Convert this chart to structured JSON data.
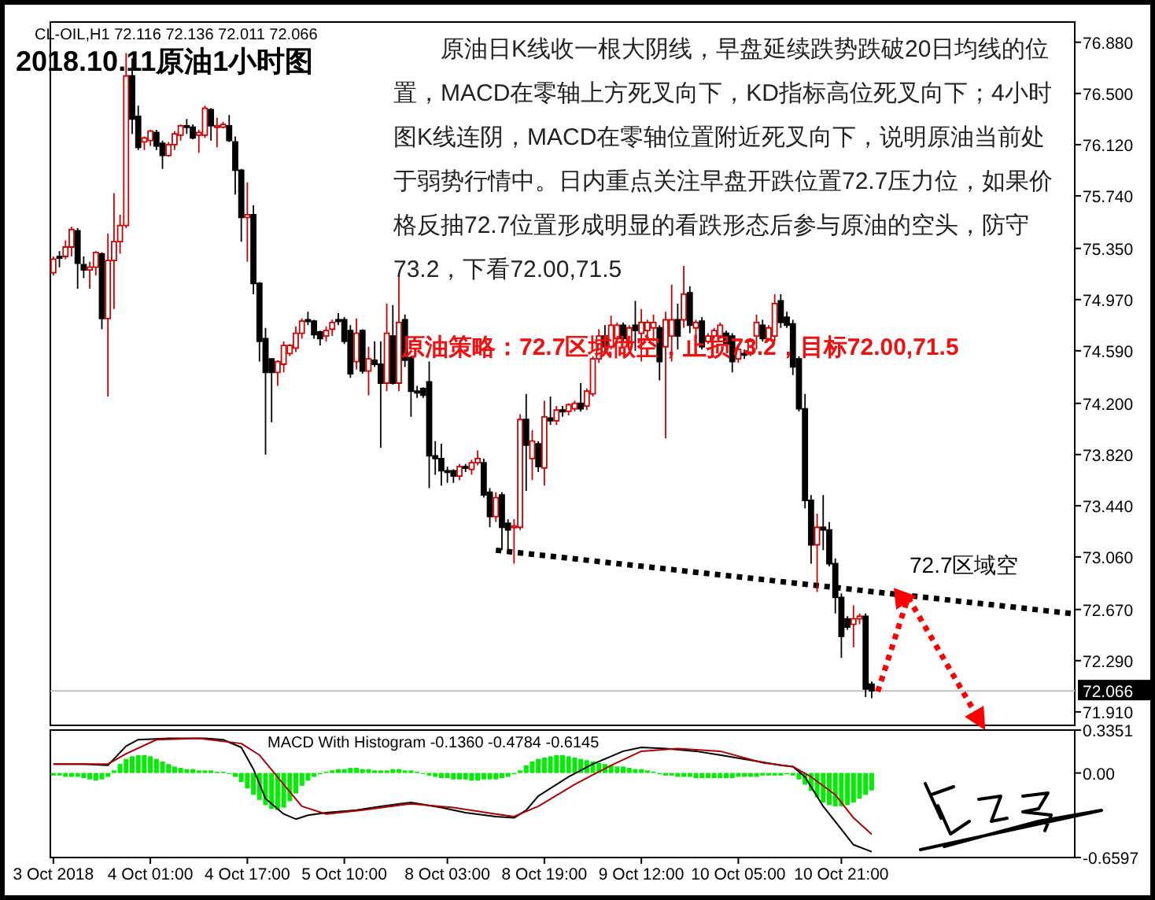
{
  "chart_data": [
    {
      "type": "candlestick",
      "title": "2018.10.11原油1小时图",
      "subtitle": "CL-OIL,H1  72.116 72.136 72.011 72.066",
      "annotations": [
        "原油日K线收一根大阴线，早盘延续跌势跌破20日均线的位置，MACD在零轴上方死叉向下，KD指标高位死叉向下；4小时图K线连阴，MACD在零轴位置附近死叉向下，说明原油当前处于弱势行情中。日内重点关注早盘开跌位置72.7压力位，如果价格反抽72.7位置形成明显的看跌形态后参与原油的空头，防守73.2，下看72.00,71.5",
        {
          "text": "原油策略：72.7区域做空，止损73.2，目标72.00,71.5",
          "y": 74.62
        },
        "72.7区域空"
      ],
      "tick_labels": "y",
      "ohlc": [
        [
          75.17,
          75.29,
          75.15,
          75.27
        ],
        [
          75.29,
          75.33,
          75.21,
          75.28
        ],
        [
          75.29,
          75.41,
          75.27,
          75.36
        ],
        [
          75.36,
          75.51,
          75.29,
          75.49
        ],
        [
          75.48,
          75.5,
          75.05,
          75.24
        ],
        [
          75.23,
          75.29,
          75.13,
          75.19
        ],
        [
          75.19,
          75.25,
          75.05,
          75.21
        ],
        [
          75.21,
          75.33,
          75.15,
          75.32
        ],
        [
          75.31,
          75.32,
          74.75,
          74.83
        ],
        [
          74.83,
          75.46,
          74.25,
          75.26
        ],
        [
          75.26,
          75.76,
          74.9,
          75.4
        ],
        [
          75.4,
          75.6,
          75.31,
          75.52
        ],
        [
          75.52,
          76.8,
          75.5,
          76.63
        ],
        [
          76.63,
          76.76,
          76.2,
          76.31
        ],
        [
          76.33,
          76.41,
          76.08,
          76.1
        ],
        [
          76.14,
          76.18,
          76.08,
          76.17
        ],
        [
          76.15,
          76.23,
          76.11,
          76.22
        ],
        [
          76.21,
          76.23,
          76.08,
          76.11
        ],
        [
          76.13,
          76.15,
          75.94,
          76.04
        ],
        [
          76.04,
          76.14,
          76.03,
          76.12
        ],
        [
          76.12,
          76.22,
          76.08,
          76.2
        ],
        [
          76.19,
          76.27,
          76.15,
          76.26
        ],
        [
          76.26,
          76.31,
          76.2,
          76.25
        ],
        [
          76.25,
          76.27,
          76.16,
          76.17
        ],
        [
          76.19,
          76.23,
          76.06,
          76.21
        ],
        [
          76.19,
          76.41,
          76.17,
          76.39
        ],
        [
          76.38,
          76.39,
          76.15,
          76.26
        ],
        [
          76.25,
          76.32,
          76.1,
          76.26
        ],
        [
          76.25,
          76.29,
          76.24,
          76.27
        ],
        [
          76.26,
          76.34,
          76.14,
          76.15
        ],
        [
          76.14,
          76.18,
          75.75,
          75.93
        ],
        [
          75.93,
          75.94,
          75.4,
          75.58
        ],
        [
          75.58,
          75.84,
          75.25,
          75.6
        ],
        [
          75.6,
          75.67,
          75.01,
          75.09
        ],
        [
          75.09,
          75.1,
          74.51,
          74.66
        ],
        [
          74.68,
          74.76,
          73.82,
          74.43
        ],
        [
          74.53,
          74.53,
          74.06,
          74.43
        ],
        [
          74.43,
          74.52,
          74.33,
          74.51
        ],
        [
          74.49,
          74.66,
          74.43,
          74.63
        ],
        [
          74.57,
          74.64,
          74.55,
          74.63
        ],
        [
          74.61,
          74.77,
          74.58,
          74.72
        ],
        [
          74.72,
          74.83,
          74.68,
          74.81
        ],
        [
          74.82,
          74.88,
          74.78,
          74.81
        ],
        [
          74.81,
          74.82,
          74.68,
          74.71
        ],
        [
          74.73,
          74.74,
          74.63,
          74.68
        ],
        [
          74.7,
          74.77,
          74.66,
          74.74
        ],
        [
          74.75,
          74.82,
          74.7,
          74.8
        ],
        [
          74.82,
          74.87,
          74.78,
          74.81
        ],
        [
          74.82,
          74.84,
          74.64,
          74.66
        ],
        [
          74.74,
          74.78,
          74.39,
          74.42
        ],
        [
          74.51,
          74.83,
          74.45,
          74.72
        ],
        [
          74.74,
          74.75,
          74.42,
          74.44
        ],
        [
          74.44,
          74.62,
          74.26,
          74.53
        ],
        [
          74.52,
          74.66,
          74.47,
          74.49
        ],
        [
          74.49,
          74.66,
          73.87,
          74.35
        ],
        [
          74.35,
          74.94,
          74.29,
          74.72
        ],
        [
          74.7,
          74.93,
          74.34,
          74.35
        ],
        [
          74.35,
          75.15,
          74.29,
          74.8
        ],
        [
          74.82,
          74.86,
          74.47,
          74.52
        ],
        [
          74.54,
          74.55,
          74.1,
          74.29
        ],
        [
          74.29,
          74.33,
          74.24,
          74.28
        ],
        [
          74.31,
          74.32,
          74.24,
          74.26
        ],
        [
          74.36,
          74.51,
          73.57,
          73.81
        ],
        [
          73.81,
          73.92,
          73.67,
          73.79
        ],
        [
          73.79,
          73.9,
          73.59,
          73.7
        ],
        [
          73.7,
          73.73,
          73.61,
          73.69
        ],
        [
          73.7,
          73.71,
          73.61,
          73.66
        ],
        [
          73.66,
          73.75,
          73.63,
          73.73
        ],
        [
          73.73,
          73.75,
          73.69,
          73.72
        ],
        [
          73.71,
          73.78,
          73.67,
          73.76
        ],
        [
          73.76,
          73.85,
          73.74,
          73.79
        ],
        [
          73.76,
          73.79,
          73.5,
          73.52
        ],
        [
          73.54,
          73.57,
          73.28,
          73.36
        ],
        [
          73.36,
          73.54,
          73.32,
          73.5
        ],
        [
          73.52,
          73.54,
          73.11,
          73.28
        ],
        [
          73.31,
          73.34,
          73.11,
          73.26
        ],
        [
          73.28,
          73.34,
          73.01,
          73.29
        ],
        [
          73.28,
          74.12,
          73.26,
          74.08
        ],
        [
          74.08,
          74.27,
          73.55,
          73.89
        ],
        [
          73.79,
          74.0,
          73.63,
          73.92
        ],
        [
          73.9,
          73.92,
          73.69,
          73.73
        ],
        [
          73.72,
          74.22,
          73.59,
          74.1
        ],
        [
          74.09,
          74.25,
          74.04,
          74.07
        ],
        [
          74.07,
          74.18,
          74.04,
          74.15
        ],
        [
          74.15,
          74.18,
          74.1,
          74.14
        ],
        [
          74.14,
          74.2,
          74.11,
          74.19
        ],
        [
          74.16,
          74.22,
          74.14,
          74.2
        ],
        [
          74.2,
          74.35,
          74.14,
          74.16
        ],
        [
          74.18,
          74.31,
          74.15,
          74.29
        ],
        [
          74.27,
          74.55,
          74.25,
          74.53
        ],
        [
          74.53,
          74.75,
          74.5,
          74.7
        ],
        [
          74.7,
          74.78,
          74.58,
          74.62
        ],
        [
          74.62,
          74.85,
          74.6,
          74.78
        ],
        [
          74.68,
          74.8,
          74.64,
          74.78
        ],
        [
          74.78,
          74.8,
          74.66,
          74.68
        ],
        [
          74.66,
          74.78,
          74.64,
          74.76
        ],
        [
          74.78,
          74.96,
          74.59,
          74.74
        ],
        [
          74.72,
          74.9,
          74.51,
          74.8
        ],
        [
          74.74,
          74.82,
          74.68,
          74.8
        ],
        [
          74.76,
          74.86,
          74.66,
          74.8
        ],
        [
          74.76,
          74.78,
          74.37,
          74.51
        ],
        [
          74.62,
          74.88,
          73.94,
          74.82
        ],
        [
          74.7,
          75.08,
          74.51,
          74.82
        ],
        [
          74.82,
          74.94,
          74.6,
          74.7
        ],
        [
          74.82,
          75.22,
          74.76,
          75.01
        ],
        [
          75.02,
          75.07,
          74.72,
          74.78
        ],
        [
          74.76,
          74.82,
          74.68,
          74.8
        ],
        [
          74.81,
          74.84,
          74.6,
          74.62
        ],
        [
          74.66,
          74.72,
          74.64,
          74.7
        ],
        [
          74.7,
          74.76,
          74.68,
          74.74
        ],
        [
          74.7,
          74.8,
          74.68,
          74.78
        ],
        [
          74.72,
          74.74,
          74.62,
          74.64
        ],
        [
          74.7,
          74.72,
          74.43,
          74.51
        ],
        [
          74.53,
          74.62,
          74.5,
          74.6
        ],
        [
          74.57,
          74.6,
          74.53,
          74.56
        ],
        [
          74.58,
          74.68,
          74.55,
          74.66
        ],
        [
          74.7,
          74.86,
          74.6,
          74.8
        ],
        [
          74.78,
          74.82,
          74.66,
          74.68
        ],
        [
          74.68,
          74.78,
          74.66,
          74.76
        ],
        [
          74.7,
          75.01,
          74.66,
          74.94
        ],
        [
          74.96,
          75.01,
          74.76,
          74.8
        ],
        [
          74.84,
          74.88,
          74.76,
          74.78
        ],
        [
          74.79,
          74.82,
          74.41,
          74.47
        ],
        [
          74.53,
          74.55,
          74.14,
          74.16
        ],
        [
          74.16,
          74.27,
          73.42,
          73.48
        ],
        [
          73.48,
          73.52,
          73.01,
          73.15
        ],
        [
          73.15,
          73.38,
          72.8,
          73.28
        ],
        [
          73.28,
          73.52,
          73.11,
          73.26
        ],
        [
          73.26,
          73.32,
          72.99,
          73.01
        ],
        [
          73.01,
          73.05,
          72.64,
          72.76
        ],
        [
          72.76,
          72.79,
          72.31,
          72.47
        ],
        [
          72.6,
          72.62,
          72.52,
          72.54
        ],
        [
          72.56,
          72.7,
          72.39,
          72.6
        ],
        [
          72.6,
          72.64,
          72.56,
          72.62
        ],
        [
          72.62,
          72.64,
          72.02,
          72.08
        ],
        [
          72.116,
          72.136,
          72.011,
          72.066
        ],
        null,
        null,
        null,
        null,
        null,
        null,
        null,
        null,
        null,
        null,
        null,
        null,
        null,
        null,
        null,
        null,
        null,
        null,
        null,
        null,
        null,
        null,
        null,
        null,
        null,
        null,
        null,
        null,
        null,
        null,
        null,
        null,
        null
      ],
      "series": [
        {
          "type": "line",
          "color": "#000000",
          "line_style": "dotted",
          "values": [
            null,
            null,
            null,
            null,
            null,
            null,
            null,
            null,
            null,
            null,
            null,
            null,
            null,
            null,
            null,
            null,
            null,
            null,
            null,
            null,
            null,
            null,
            null,
            null,
            null,
            null,
            null,
            null,
            null,
            null,
            null,
            null,
            null,
            null,
            null,
            null,
            null,
            null,
            null,
            null,
            null,
            null,
            null,
            null,
            null,
            null,
            null,
            null,
            null,
            null,
            null,
            null,
            null,
            null,
            null,
            null,
            null,
            null,
            null,
            null,
            null,
            null,
            null,
            null,
            null,
            null,
            null,
            null,
            null,
            null,
            null,
            null,
            null,
            73.11,
            null,
            null,
            null,
            null,
            null,
            null,
            null,
            null,
            null,
            null,
            null,
            null,
            null,
            null,
            null,
            null,
            null,
            null,
            null,
            null,
            null,
            null,
            null,
            null,
            null,
            null,
            null,
            null,
            null,
            null,
            null,
            null,
            null,
            null,
            null,
            null,
            null,
            null,
            null,
            null,
            null,
            null,
            null,
            null,
            null,
            null,
            null,
            null,
            null,
            null,
            null,
            null,
            null,
            null,
            null,
            null,
            null,
            null,
            null,
            null,
            null,
            null,
            null,
            null,
            null,
            null,
            null,
            null,
            null,
            null,
            null,
            null,
            null,
            null,
            null,
            null,
            null,
            null,
            null,
            null,
            null,
            null,
            null,
            null,
            null,
            null,
            null,
            null,
            null,
            null,
            null,
            null,
            null,
            null,
            72.64
          ]
        },
        {
          "type": "line",
          "color": "#ff0000",
          "line_style": "dotted",
          "values": [
            null,
            null,
            null,
            null,
            null,
            null,
            null,
            null,
            null,
            null,
            null,
            null,
            null,
            null,
            null,
            null,
            null,
            null,
            null,
            null,
            null,
            null,
            null,
            null,
            null,
            null,
            null,
            null,
            null,
            null,
            null,
            null,
            null,
            null,
            null,
            null,
            null,
            null,
            null,
            null,
            null,
            null,
            null,
            null,
            null,
            null,
            null,
            null,
            null,
            null,
            null,
            null,
            null,
            null,
            null,
            null,
            null,
            null,
            null,
            null,
            null,
            null,
            null,
            null,
            null,
            null,
            null,
            null,
            null,
            null,
            null,
            null,
            null,
            null,
            null,
            null,
            null,
            null,
            null,
            null,
            null,
            null,
            null,
            null,
            null,
            null,
            null,
            null,
            null,
            null,
            null,
            null,
            null,
            null,
            null,
            null,
            null,
            null,
            null,
            null,
            null,
            null,
            null,
            null,
            null,
            null,
            null,
            null,
            null,
            null,
            null,
            null,
            null,
            null,
            null,
            null,
            null,
            null,
            null,
            null,
            null,
            null,
            null,
            null,
            null,
            null,
            null,
            null,
            null,
            null,
            null,
            null,
            null,
            null,
            null,
            null,
            72.06,
            null,
            null,
            null,
            null,
            72.76,
            null,
            null,
            null,
            null,
            null,
            null,
            null,
            null,
            null,
            null,
            null,
            71.83,
            null,
            null,
            null,
            null,
            null,
            null,
            null,
            null,
            null,
            null,
            null,
            null,
            null,
            null,
            null
          ]
        }
      ],
      "ylim": [
        71.81,
        77.03
      ],
      "yticks": [
        {
          "value": 76.88,
          "label": "76.880"
        },
        {
          "value": 76.5,
          "label": "76.500"
        },
        {
          "value": 76.12,
          "label": "76.120"
        },
        {
          "value": 75.74,
          "label": "75.740"
        },
        {
          "value": 75.35,
          "label": "75.350"
        },
        {
          "value": 74.97,
          "label": "74.970"
        },
        {
          "value": 74.59,
          "label": "74.590"
        },
        {
          "value": 74.2,
          "label": "74.200"
        },
        {
          "value": 73.82,
          "label": "73.820"
        },
        {
          "value": 73.44,
          "label": "73.440"
        },
        {
          "value": 73.06,
          "label": "73.060"
        },
        {
          "value": 72.67,
          "label": "72.670"
        },
        {
          "value": 72.29,
          "label": "72.290"
        },
        {
          "value": 71.91,
          "label": "71.910"
        }
      ],
      "ref_lines": [
        {
          "axis": "y",
          "value": 72.066,
          "label": "72.066",
          "color": "#c0c0c0"
        }
      ]
    },
    {
      "type": "bar",
      "title": "MACD With Histogram -0.1360 -0.4784 -0.6145",
      "color": "#00ee00",
      "categories": [
        "3 Oct 2018",
        null,
        null,
        null,
        null,
        null,
        null,
        null,
        null,
        null,
        null,
        null,
        null,
        null,
        null,
        null,
        "4 Oct 01:00",
        null,
        null,
        null,
        null,
        null,
        null,
        null,
        null,
        null,
        null,
        null,
        null,
        null,
        null,
        null,
        "4 Oct 17:00",
        null,
        null,
        null,
        null,
        null,
        null,
        null,
        null,
        null,
        null,
        null,
        null,
        null,
        null,
        null,
        "5 Oct 10:00",
        null,
        null,
        null,
        null,
        null,
        null,
        null,
        null,
        null,
        null,
        null,
        null,
        null,
        null,
        null,
        null,
        "8 Oct 03:00",
        null,
        null,
        null,
        null,
        null,
        null,
        null,
        null,
        null,
        null,
        null,
        null,
        null,
        null,
        null,
        "8 Oct 19:00",
        null,
        null,
        null,
        null,
        null,
        null,
        null,
        null,
        null,
        null,
        null,
        null,
        null,
        null,
        null,
        "9 Oct 12:00",
        null,
        null,
        null,
        null,
        null,
        null,
        null,
        null,
        null,
        null,
        null,
        null,
        null,
        null,
        null,
        "10 Oct 05:00",
        null,
        null,
        null,
        null,
        null,
        null,
        null,
        null,
        null,
        null,
        null,
        null,
        null,
        null,
        null,
        null,
        "10 Oct 21:00",
        null,
        null,
        null,
        null,
        null,
        null,
        null,
        null,
        null,
        null,
        null,
        null,
        null,
        null,
        null,
        null,
        null,
        null,
        null,
        null,
        null,
        null,
        null,
        null,
        null,
        null,
        null,
        null,
        null,
        null,
        null,
        null,
        null,
        null,
        null,
        null,
        null,
        null
      ],
      "values": [
        -0.02,
        -0.02,
        -0.03,
        -0.03,
        -0.03,
        -0.04,
        -0.05,
        -0.06,
        -0.05,
        -0.03,
        0.02,
        0.07,
        0.11,
        0.13,
        0.14,
        0.14,
        0.13,
        0.11,
        0.09,
        0.07,
        0.05,
        0.04,
        0.03,
        0.03,
        0.02,
        0.02,
        0.02,
        0.01,
        0.01,
        0.0,
        -0.03,
        -0.07,
        -0.12,
        -0.17,
        -0.21,
        -0.25,
        -0.28,
        -0.29,
        -0.27,
        -0.22,
        -0.16,
        -0.1,
        -0.06,
        -0.03,
        -0.01,
        0.01,
        0.02,
        0.03,
        0.03,
        0.04,
        0.04,
        0.03,
        0.03,
        0.02,
        0.02,
        0.02,
        0.03,
        0.03,
        0.02,
        0.02,
        0.01,
        0.0,
        -0.02,
        -0.03,
        -0.04,
        -0.04,
        -0.05,
        -0.05,
        -0.05,
        -0.06,
        -0.06,
        -0.05,
        -0.05,
        -0.05,
        -0.04,
        -0.03,
        -0.01,
        0.02,
        0.06,
        0.09,
        0.11,
        0.12,
        0.13,
        0.14,
        0.14,
        0.13,
        0.12,
        0.11,
        0.1,
        0.09,
        0.08,
        0.07,
        0.06,
        0.05,
        0.05,
        0.04,
        0.03,
        0.03,
        0.02,
        0.01,
        -0.01,
        -0.02,
        -0.02,
        -0.03,
        -0.03,
        -0.03,
        -0.04,
        -0.04,
        -0.04,
        -0.04,
        -0.04,
        -0.04,
        -0.04,
        -0.03,
        -0.03,
        -0.03,
        -0.03,
        -0.02,
        -0.02,
        -0.02,
        -0.02,
        -0.01,
        -0.02,
        -0.05,
        -0.09,
        -0.14,
        -0.19,
        -0.23,
        -0.25,
        -0.26,
        -0.26,
        -0.25,
        -0.23,
        -0.2,
        -0.17,
        -0.136,
        null,
        null,
        null,
        null,
        null,
        null,
        null,
        null,
        null,
        null,
        null,
        null,
        null,
        null,
        null,
        null,
        null,
        null,
        null,
        null,
        null,
        null,
        null,
        null,
        null,
        null,
        null,
        null,
        null,
        null,
        null,
        null,
        null
      ],
      "series": [
        {
          "type": "line",
          "color": "#000000",
          "values": [
            0.07,
            null,
            null,
            null,
            null,
            0.07,
            null,
            null,
            null,
            0.06,
            0.11,
            null,
            0.21,
            null,
            0.26,
            null,
            null,
            null,
            null,
            0.27,
            null,
            null,
            null,
            null,
            null,
            0.27,
            null,
            null,
            0.26,
            null,
            null,
            0.2,
            null,
            0.03,
            null,
            -0.2,
            null,
            null,
            -0.32,
            null,
            -0.36,
            null,
            -0.33,
            null,
            null,
            -0.31,
            null,
            null,
            null,
            null,
            -0.29,
            null,
            null,
            null,
            -0.26,
            null,
            null,
            null,
            null,
            -0.23,
            null,
            null,
            null,
            null,
            -0.27,
            null,
            null,
            null,
            -0.31,
            null,
            null,
            null,
            null,
            -0.34,
            null,
            null,
            -0.35,
            null,
            -0.29,
            null,
            -0.18,
            null,
            null,
            null,
            null,
            -0.03,
            null,
            null,
            null,
            0.07,
            null,
            null,
            null,
            null,
            0.17,
            null,
            null,
            0.2,
            null,
            null,
            null,
            0.19,
            null,
            null,
            null,
            null,
            0.17,
            null,
            null,
            null,
            0.14,
            null,
            null,
            null,
            null,
            0.1,
            null,
            null,
            null,
            null,
            0.06,
            null,
            0.05,
            null,
            -0.03,
            null,
            null,
            -0.26,
            null,
            null,
            -0.44,
            null,
            -0.56,
            null,
            null,
            -0.6145,
            null,
            null,
            null,
            null,
            null,
            null,
            null,
            null,
            null,
            null,
            null,
            null,
            null,
            null,
            null,
            null,
            null,
            null,
            null,
            null,
            null,
            null,
            null,
            null,
            null,
            null,
            null,
            null,
            null,
            null,
            null,
            null,
            null
          ]
        },
        {
          "type": "line",
          "color": "#b00000",
          "values": [
            0.07,
            null,
            null,
            null,
            null,
            null,
            null,
            null,
            null,
            0.07,
            null,
            null,
            0.15,
            null,
            null,
            null,
            null,
            0.26,
            null,
            null,
            null,
            null,
            null,
            null,
            0.27,
            null,
            null,
            null,
            null,
            null,
            null,
            0.23,
            null,
            null,
            0.14,
            null,
            null,
            null,
            -0.09,
            null,
            null,
            -0.26,
            null,
            null,
            null,
            -0.32,
            null,
            null,
            null,
            null,
            null,
            -0.29,
            null,
            null,
            null,
            null,
            null,
            null,
            null,
            -0.24,
            null,
            null,
            null,
            null,
            null,
            null,
            -0.27,
            null,
            null,
            null,
            null,
            null,
            null,
            -0.32,
            null,
            null,
            -0.34,
            null,
            null,
            null,
            -0.26,
            null,
            null,
            null,
            null,
            null,
            -0.09,
            null,
            null,
            null,
            null,
            null,
            0.06,
            null,
            null,
            null,
            null,
            0.17,
            null,
            null,
            null,
            null,
            null,
            0.19,
            null,
            null,
            null,
            null,
            null,
            null,
            0.17,
            null,
            null,
            null,
            null,
            null,
            null,
            0.08,
            null,
            null,
            null,
            null,
            0.05,
            null,
            null,
            -0.03,
            null,
            null,
            null,
            -0.17,
            null,
            null,
            -0.35,
            null,
            null,
            -0.4784,
            null,
            null,
            null,
            null,
            null,
            null,
            null,
            null,
            null,
            null,
            null,
            null,
            null,
            null,
            null,
            null,
            null,
            null,
            null,
            null,
            null,
            null,
            null,
            null,
            null,
            null,
            null,
            null,
            null,
            null,
            null,
            null,
            null
          ]
        }
      ],
      "ylim": [
        -0.6597,
        0.3351
      ],
      "yticks": [
        {
          "value": 0.3351,
          "label": "0.3351"
        },
        {
          "value": 0,
          "label": "0.00"
        },
        {
          "value": -0.6597,
          "label": "-0.6597"
        }
      ]
    }
  ]
}
